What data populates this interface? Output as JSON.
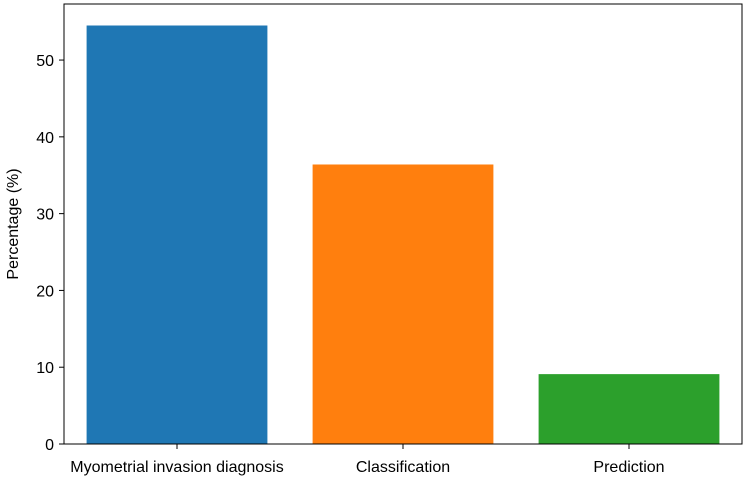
{
  "chart_data": {
    "type": "bar",
    "title": "",
    "xlabel": "",
    "ylabel": "Percentage (%)",
    "categories": [
      "Myometrial invasion diagnosis",
      "Classification",
      "Prediction"
    ],
    "values": [
      54.5,
      36.4,
      9.1
    ],
    "colors": [
      "#1f77b4",
      "#ff7f0e",
      "#2ca02c"
    ],
    "ylim": [
      0,
      57.3
    ],
    "yticks": [
      0,
      10,
      20,
      30,
      40,
      50
    ],
    "grid": false,
    "legend": "none"
  }
}
